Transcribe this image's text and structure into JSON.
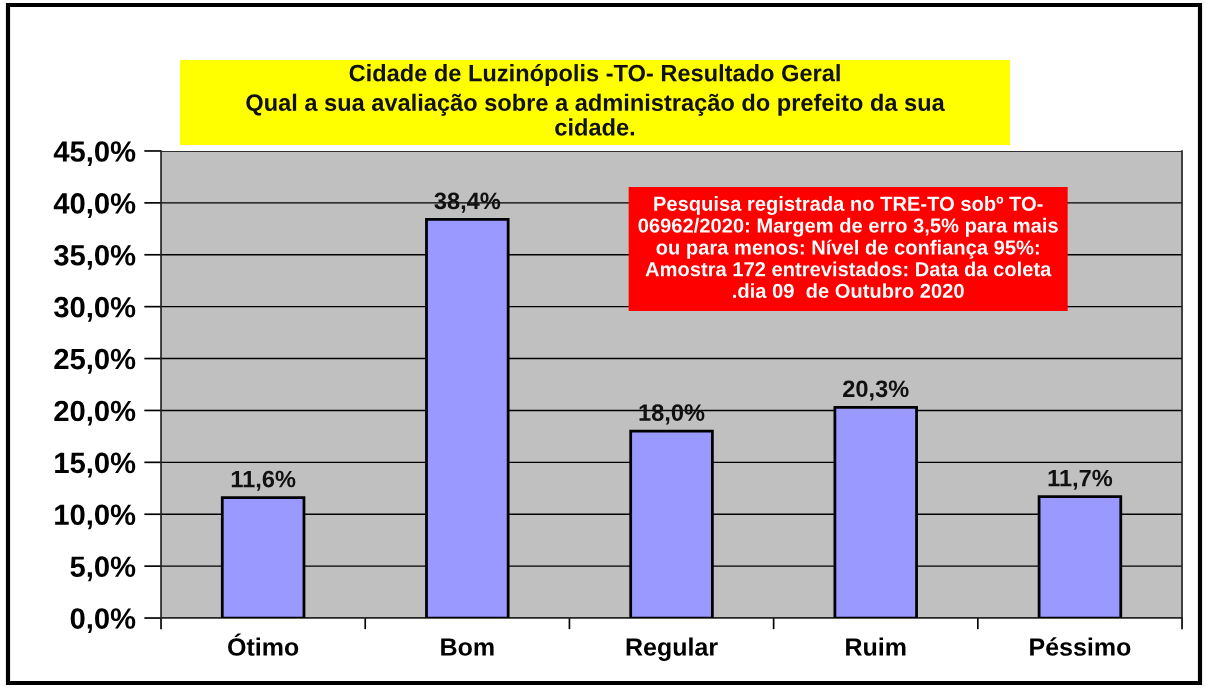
{
  "chart_data": {
    "type": "bar",
    "title": "Cidade de Luzinópolis -TO- Resultado Geral",
    "subtitle": "Qual a sua avaliação sobre a administração do prefeito da sua\ncidade.",
    "categories": [
      "Ótimo",
      "Bom",
      "Regular",
      "Ruim",
      "Péssimo"
    ],
    "values": [
      11.6,
      38.4,
      18.0,
      20.3,
      11.7
    ],
    "value_labels": [
      "11,6%",
      "38,4%",
      "18,0%",
      "20,3%",
      "11,7%"
    ],
    "color": "#9999ff",
    "ylim": [
      0,
      45
    ],
    "yticks": [
      {
        "value": 0,
        "label": "0,0%"
      },
      {
        "value": 5,
        "label": "5,0%"
      },
      {
        "value": 10,
        "label": "10,0%"
      },
      {
        "value": 15,
        "label": "15,0%"
      },
      {
        "value": 20,
        "label": "20,0%"
      },
      {
        "value": 25,
        "label": "25,0%"
      },
      {
        "value": 30,
        "label": "30,0%"
      },
      {
        "value": 35,
        "label": "35,0%"
      },
      {
        "value": 40,
        "label": "40,0%"
      },
      {
        "value": 45,
        "label": "45,0%"
      }
    ],
    "grid": "y",
    "annotations": [
      "Pesquisa registrada no TRE-TO sobº TO-\n06962/2020: Margem de erro 3,5% para mais\nou para menos: Nível de confiança 95%:\nAmostra 172 entrevistados: Data da coleta\n.dia 09  de Outubro 2020"
    ]
  }
}
